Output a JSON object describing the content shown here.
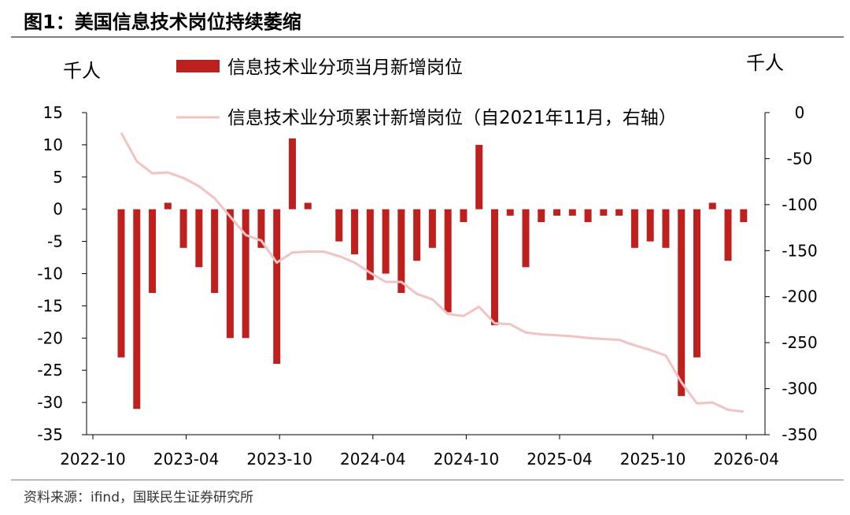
{
  "title": "图1：美国信息技术岗位持续萎缩",
  "source": "资料来源：ifind，国联民生证券研究所",
  "colors": {
    "bar": "#c0201d",
    "line": "#f2c3c3",
    "rule": "#7f7f7f"
  },
  "chart_data": {
    "type": "bar+line",
    "left_unit": "千人",
    "right_unit": "千人",
    "legend": [
      {
        "label": "信息技术业分项当月新增岗位",
        "kind": "bar"
      },
      {
        "label": "信息技术业分项累计新增岗位（自2021年11月，右轴）",
        "kind": "line"
      }
    ],
    "left_axis": {
      "min": -35,
      "max": 15,
      "ticks": [
        15,
        10,
        5,
        0,
        -5,
        -10,
        -15,
        -20,
        -25,
        -30,
        -35
      ]
    },
    "right_axis": {
      "min": -350,
      "max": 0,
      "ticks": [
        0,
        -50,
        -100,
        -150,
        -200,
        -250,
        -300,
        -350
      ]
    },
    "x_ticks": [
      "2022-10",
      "2023-04",
      "2023-10",
      "2024-04",
      "2024-10",
      "2025-04",
      "2025-10",
      "2026-04"
    ],
    "x_months": [
      "2022-11",
      "2022-12",
      "2023-01",
      "2023-02",
      "2023-03",
      "2023-04",
      "2023-05",
      "2023-06",
      "2023-07",
      "2023-08",
      "2023-09",
      "2023-10",
      "2023-11",
      "2023-12",
      "2024-01",
      "2024-02",
      "2024-03",
      "2024-04",
      "2024-05",
      "2024-06",
      "2024-07",
      "2024-08",
      "2024-09",
      "2024-10",
      "2024-11",
      "2024-12",
      "2025-01",
      "2025-02",
      "2025-03",
      "2025-04",
      "2025-05",
      "2025-06",
      "2025-07",
      "2025-08",
      "2025-09",
      "2025-10",
      "2025-11",
      "2025-12",
      "2026-01",
      "2026-02",
      "2026-03",
      "2026-04"
    ],
    "series": [
      {
        "name": "信息技术业分项当月新增岗位",
        "axis": "left",
        "values": [
          -23,
          -31,
          -13,
          1,
          -6,
          -9,
          -13,
          -20,
          -20,
          -6,
          -24,
          11,
          1,
          null,
          -5,
          -7,
          -11,
          -10,
          -13,
          -8,
          -6,
          -16,
          -2,
          10,
          -18,
          -1,
          -9,
          -2,
          -1,
          -1,
          -2,
          -1,
          -1,
          -6,
          -5,
          -6,
          -29,
          -23,
          1,
          -8,
          -2,
          null
        ]
      },
      {
        "name": "信息技术业分项累计新增岗位（自2021年11月，右轴）",
        "axis": "right",
        "values": [
          -22,
          -53,
          -66,
          -65,
          -71,
          -80,
          -93,
          -113,
          -133,
          -139,
          -163,
          -152,
          -151,
          -151,
          -156,
          -163,
          -174,
          -184,
          -184,
          -197,
          -203,
          -219,
          -221,
          -211,
          -229,
          -230,
          -239,
          -241,
          -242,
          -243,
          -245,
          -246,
          -247,
          -253,
          -258,
          -264,
          -293,
          -316,
          -315,
          -323,
          -325,
          null
        ]
      }
    ]
  }
}
